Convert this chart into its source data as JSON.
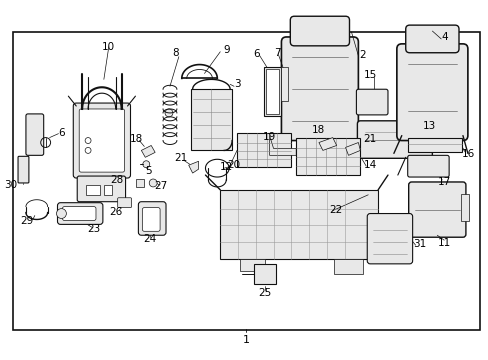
{
  "bg_color": "#ffffff",
  "border_color": "#000000",
  "text_color": "#000000",
  "fig_width": 4.89,
  "fig_height": 3.6,
  "dpi": 100,
  "bottom_label": "1",
  "lw_main": 0.8,
  "lw_thin": 0.5,
  "gray_fill": "#e8e8e8",
  "white_fill": "#ffffff",
  "label_fs": 7.5
}
